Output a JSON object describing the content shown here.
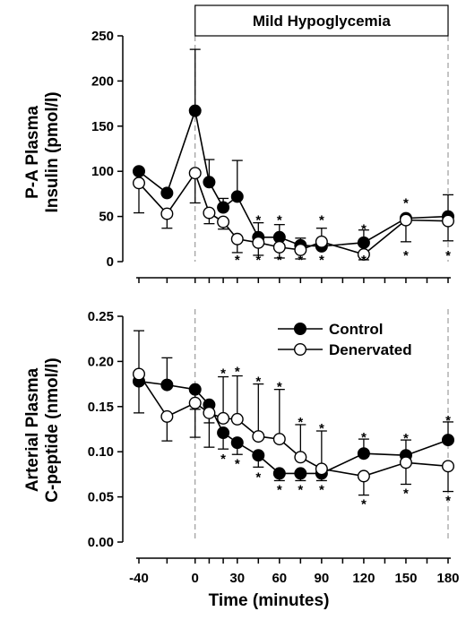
{
  "x_axis_label": "Time (minutes)",
  "hypoglycemia_label": "Mild Hypoglycemia",
  "chart_data": [
    {
      "type": "line",
      "ylabel_lines": [
        "P-A Plasma",
        "Insulin (pmol/l)"
      ],
      "ylim": [
        0,
        250
      ],
      "yticks": [
        0,
        50,
        100,
        150,
        200,
        250
      ],
      "xticks": [
        -40,
        0,
        30,
        60,
        90,
        120,
        150,
        180
      ],
      "xlim": [
        -45,
        185
      ],
      "grid": false,
      "legend": null,
      "series": [
        {
          "key": "control",
          "filled": true,
          "x": [
            -40,
            -20,
            0,
            10,
            20,
            30,
            45,
            60,
            75,
            90,
            120,
            150,
            180
          ],
          "y": [
            100,
            76,
            167,
            88,
            60,
            72,
            27,
            27,
            18,
            17,
            21,
            48,
            50
          ],
          "err": [
            null,
            null,
            68,
            25,
            10,
            40,
            16,
            14,
            8,
            20,
            14,
            null,
            24
          ],
          "err_dir": [
            1,
            1,
            1,
            1,
            1,
            1,
            1,
            1,
            1,
            1,
            1,
            1,
            1
          ]
        },
        {
          "key": "denervated",
          "filled": false,
          "x": [
            -40,
            -20,
            0,
            10,
            20,
            30,
            45,
            60,
            75,
            90,
            120,
            150,
            180
          ],
          "y": [
            87,
            53,
            98,
            54,
            44,
            25,
            21,
            16,
            13,
            22,
            8,
            46,
            45
          ],
          "err": [
            33,
            16,
            33,
            12,
            8,
            15,
            14,
            12,
            10,
            8,
            6,
            24,
            22
          ],
          "err_dir": [
            -1,
            -1,
            -1,
            -1,
            -1,
            -1,
            -1,
            -1,
            -1,
            -1,
            -1,
            -1,
            -1
          ]
        }
      ],
      "stars": [
        {
          "x": 45,
          "y": 49,
          "label": "*"
        },
        {
          "x": 60,
          "y": 49,
          "label": "*"
        },
        {
          "x": 90,
          "y": 49,
          "label": "*"
        },
        {
          "x": 120,
          "y": 39,
          "label": "*"
        },
        {
          "x": 150,
          "y": 68,
          "label": "*"
        },
        {
          "x": 30,
          "y": 5,
          "label": "*"
        },
        {
          "x": 45,
          "y": 5,
          "label": "*"
        },
        {
          "x": 60,
          "y": 5,
          "label": "*"
        },
        {
          "x": 75,
          "y": 5,
          "label": "*"
        },
        {
          "x": 90,
          "y": 5,
          "label": "*"
        },
        {
          "x": 120,
          "y": 5,
          "label": "*"
        },
        {
          "x": 150,
          "y": 10,
          "label": "*"
        },
        {
          "x": 180,
          "y": 10,
          "label": "*"
        }
      ]
    },
    {
      "type": "line",
      "ylabel_lines": [
        "Arterial Plasma",
        "C-peptide (nmol/l)"
      ],
      "ylim": [
        0,
        0.25
      ],
      "yticks": [
        "0.00",
        "0.05",
        "0.10",
        "0.15",
        "0.20",
        "0.25"
      ],
      "xticks": [
        -40,
        0,
        30,
        60,
        90,
        120,
        150,
        180
      ],
      "xlim": [
        -45,
        185
      ],
      "grid": false,
      "legend": {
        "placement": "top-right",
        "entries": [
          {
            "label": "Control",
            "filled": true
          },
          {
            "label": "Denervated",
            "filled": false
          }
        ]
      },
      "series": [
        {
          "key": "control",
          "filled": true,
          "x": [
            -40,
            -20,
            0,
            10,
            20,
            30,
            45,
            60,
            75,
            90,
            120,
            150,
            180
          ],
          "y": [
            0.178,
            0.174,
            0.169,
            0.152,
            0.121,
            0.11,
            0.096,
            0.076,
            0.076,
            0.076,
            0.098,
            0.096,
            0.113
          ],
          "err": [
            0.035,
            0.03,
            0.022,
            0.02,
            0.018,
            0.013,
            0.013,
            0.008,
            0.008,
            0.008,
            0.016,
            0.017,
            0.02
          ],
          "err_dir": [
            -1,
            1,
            -1,
            -1,
            -1,
            -1,
            -1,
            -1,
            -1,
            -1,
            1,
            1,
            1
          ]
        },
        {
          "key": "denervated",
          "filled": false,
          "x": [
            -40,
            -20,
            0,
            10,
            20,
            30,
            45,
            60,
            75,
            90,
            120,
            150,
            180
          ],
          "y": [
            0.186,
            0.139,
            0.154,
            0.143,
            0.137,
            0.136,
            0.117,
            0.114,
            0.094,
            0.081,
            0.073,
            0.088,
            0.084
          ],
          "err": [
            0.048,
            0.027,
            0.038,
            0.038,
            0.046,
            0.048,
            0.058,
            0.055,
            0.036,
            0.042,
            0.021,
            0.024,
            0.028
          ],
          "err_dir": [
            1,
            -1,
            -1,
            -1,
            1,
            1,
            1,
            1,
            1,
            1,
            -1,
            -1,
            -1
          ]
        }
      ],
      "stars": [
        {
          "x": 20,
          "y": 0.19,
          "label": "*"
        },
        {
          "x": 30,
          "y": 0.192,
          "label": "*"
        },
        {
          "x": 45,
          "y": 0.181,
          "label": "*"
        },
        {
          "x": 60,
          "y": 0.175,
          "label": "*"
        },
        {
          "x": 75,
          "y": 0.136,
          "label": "*"
        },
        {
          "x": 90,
          "y": 0.129,
          "label": "*"
        },
        {
          "x": 120,
          "y": 0.119,
          "label": "*"
        },
        {
          "x": 150,
          "y": 0.118,
          "label": "*"
        },
        {
          "x": 180,
          "y": 0.138,
          "label": "*"
        },
        {
          "x": 20,
          "y": 0.095,
          "label": "*"
        },
        {
          "x": 30,
          "y": 0.09,
          "label": "*"
        },
        {
          "x": 45,
          "y": 0.075,
          "label": "*"
        },
        {
          "x": 60,
          "y": 0.061,
          "label": "*"
        },
        {
          "x": 75,
          "y": 0.061,
          "label": "*"
        },
        {
          "x": 90,
          "y": 0.061,
          "label": "*"
        },
        {
          "x": 120,
          "y": 0.045,
          "label": "*"
        },
        {
          "x": 150,
          "y": 0.057,
          "label": "*"
        },
        {
          "x": 180,
          "y": 0.049,
          "label": "*"
        }
      ]
    }
  ]
}
